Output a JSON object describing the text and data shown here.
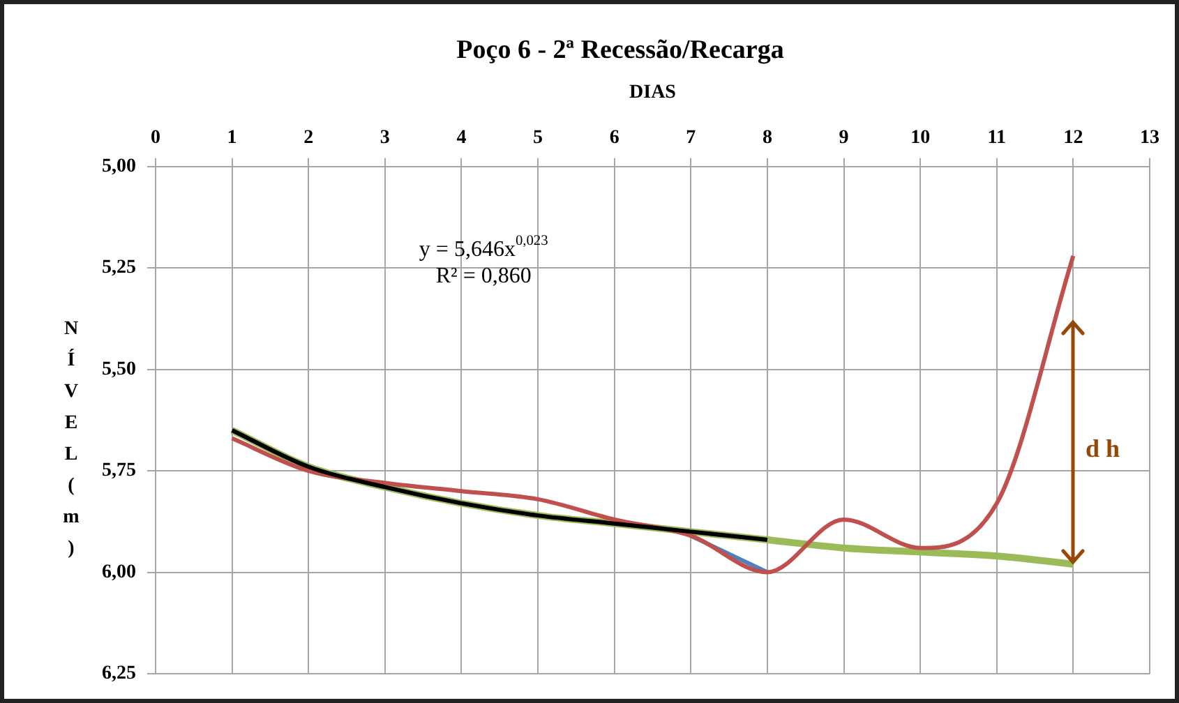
{
  "chart_data": {
    "type": "line",
    "title": "Poço 6 - 2ª Recessão/Recarga",
    "xlabel": "DIAS",
    "ylabel": "NÍVEL ( m)",
    "xlim": [
      0,
      13
    ],
    "xticks": [
      0,
      1,
      2,
      3,
      4,
      5,
      6,
      7,
      8,
      9,
      10,
      11,
      12,
      13
    ],
    "ylim": [
      6.25,
      5.0
    ],
    "yticks": [
      {
        "value": 5,
        "label": "5,00"
      },
      {
        "value": 5.25,
        "label": "5,25"
      },
      {
        "value": 5.5,
        "label": "5,50"
      },
      {
        "value": 5.75,
        "label": "5,75"
      },
      {
        "value": 6,
        "label": "6,00"
      },
      {
        "value": 6.25,
        "label": "6,25"
      }
    ],
    "grid": true,
    "legend": false,
    "marker": "none",
    "line_style": "solid",
    "series": [
      {
        "color": "#9bbb59",
        "x": [
          1,
          2,
          3,
          4,
          5,
          6,
          7,
          8,
          9,
          10,
          11,
          12
        ],
        "values": [
          5.65,
          5.74,
          5.79,
          5.83,
          5.86,
          5.88,
          5.9,
          5.92,
          5.94,
          5.95,
          5.96,
          5.98
        ]
      },
      {
        "color": "#4f81bd",
        "x": [
          7,
          8
        ],
        "values": [
          5.91,
          6.0
        ]
      },
      {
        "color": "#c0504d",
        "x": [
          1,
          2,
          3,
          4,
          5,
          6,
          7,
          8,
          9,
          10,
          11,
          12
        ],
        "values": [
          5.67,
          5.75,
          5.78,
          5.8,
          5.82,
          5.87,
          5.91,
          6.0,
          5.87,
          5.94,
          5.83,
          5.22
        ]
      },
      {
        "color": "#000000",
        "x": [
          1,
          2,
          3,
          4,
          5,
          6,
          7,
          8
        ],
        "values": [
          5.65,
          5.74,
          5.79,
          5.83,
          5.86,
          5.88,
          5.9,
          5.92
        ]
      }
    ],
    "annotations": [
      "y = 5,646x$^{0,023}$",
      "R² = 0,860",
      "d h"
    ]
  }
}
